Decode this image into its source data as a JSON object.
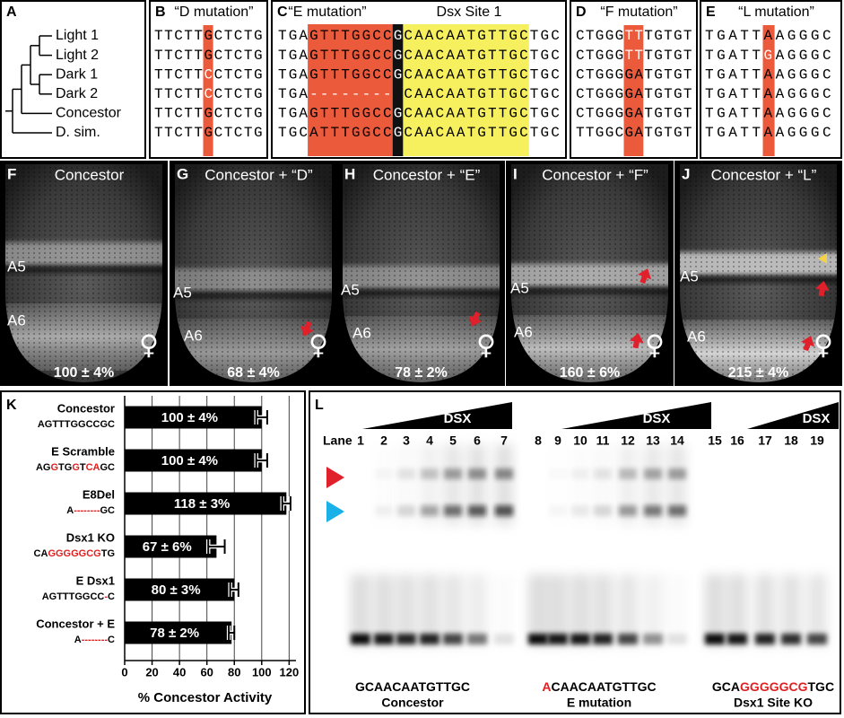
{
  "panel_a": {
    "letter": "A",
    "taxa": [
      "Light 1",
      "Light 2",
      "Dark 1",
      "Dark 2",
      "Concestor",
      "D. sim."
    ]
  },
  "panel_b": {
    "letter": "B",
    "title": "“D mutation”",
    "rows": [
      {
        "pre": "TTCTT",
        "mid": "G",
        "post": "CTCTG",
        "mutant": false
      },
      {
        "pre": "TTCTT",
        "mid": "G",
        "post": "CTCTG",
        "mutant": false
      },
      {
        "pre": "TTCTT",
        "mid": "C",
        "post": "CTCTG",
        "mutant": true
      },
      {
        "pre": "TTCTT",
        "mid": "C",
        "post": "CTCTG",
        "mutant": true
      },
      {
        "pre": "TTCTT",
        "mid": "G",
        "post": "CTCTG",
        "mutant": false
      },
      {
        "pre": "TTCTT",
        "mid": "G",
        "post": "CTCTG",
        "mutant": false
      }
    ]
  },
  "panel_c": {
    "letter": "C",
    "title": "“E mutation”",
    "site": "Dsx Site 1",
    "rows": [
      {
        "pre": "TGA",
        "orange": "GTTTGGCC",
        "black": "G",
        "yellow": "CAACAATGTTGC",
        "post": "TGC"
      },
      {
        "pre": "TGA",
        "orange": "GTTTGGCC",
        "black": "G",
        "yellow": "CAACAATGTTGC",
        "post": "TGC"
      },
      {
        "pre": "TGA",
        "orange": "GTTTGGCC",
        "black": "G",
        "yellow": "CAACAATGTTGC",
        "post": "TGC"
      },
      {
        "pre": "TGA",
        "orange": "--------",
        "yellow": "CAACAATGTTGC",
        "post": "TGC"
      },
      {
        "pre": "TGA",
        "orange": "GTTTGGCC",
        "black": "G",
        "yellow": "CAACAATGTTGC",
        "post": "TGC"
      },
      {
        "pre": "TGC",
        "orange": "ATTTGGCC",
        "black": "G",
        "yellow": "CAACAATGTTGC",
        "post": "TGC"
      }
    ]
  },
  "panel_d": {
    "letter": "D",
    "title": "“F mutation”",
    "rows": [
      {
        "pre": "CTGGG",
        "mid": "TT",
        "post": "TGTGT",
        "mutant": true
      },
      {
        "pre": "CTGGG",
        "mid": "TT",
        "post": "TGTGT",
        "mutant": true
      },
      {
        "pre": "CTGGG",
        "mid": "GA",
        "post": "TGTGT",
        "mutant": false
      },
      {
        "pre": "CTGGG",
        "mid": "GA",
        "post": "TGTGT",
        "mutant": false
      },
      {
        "pre": "CTGGG",
        "mid": "GA",
        "post": "TGTGT",
        "mutant": false
      },
      {
        "pre": "TTGGC",
        "mid": "GA",
        "post": "TGTGT",
        "mutant": false
      }
    ]
  },
  "panel_e": {
    "letter": "E",
    "title": "“L mutation”",
    "rows": [
      {
        "pre": "TGATT",
        "mid": "A",
        "post": "AGGGC",
        "mutant": false
      },
      {
        "pre": "TGATT",
        "mid": "G",
        "post": "AGGGC",
        "mutant": true
      },
      {
        "pre": "TGATT",
        "mid": "A",
        "post": "AGGGC",
        "mutant": false
      },
      {
        "pre": "TGATT",
        "mid": "A",
        "post": "AGGGC",
        "mutant": false
      },
      {
        "pre": "TGATT",
        "mid": "A",
        "post": "AGGGC",
        "mutant": false
      },
      {
        "pre": "TGATT",
        "mid": "A",
        "post": "AGGGC",
        "mutant": false
      }
    ]
  },
  "images": [
    {
      "letter": "F",
      "title": "Concestor",
      "a5": "A5",
      "a6": "A6",
      "symbol": "♀",
      "activity": "100 ± 4%"
    },
    {
      "letter": "G",
      "title": "Concestor + “D”",
      "a5": "A5",
      "a6": "A6",
      "symbol": "♀",
      "activity": "68 ± 4%"
    },
    {
      "letter": "H",
      "title": "Concestor + “E”",
      "a5": "A5",
      "a6": "A6",
      "symbol": "♀",
      "activity": "78 ± 2%"
    },
    {
      "letter": "I",
      "title": "Concestor + “F”",
      "a5": "A5",
      "a6": "A6",
      "symbol": "♀",
      "activity": "160 ± 6%"
    },
    {
      "letter": "J",
      "title": "Concestor + “L”",
      "a5": "A5",
      "a6": "A6",
      "symbol": "♀",
      "activity": "215 ± 4%"
    }
  ],
  "chart_data": {
    "type": "bar",
    "orientation": "horizontal",
    "panel_label": "K",
    "categories": [
      "Concestor",
      "E Scramble",
      "E8Del",
      "Dsx1 KO",
      "E Dsx1",
      "Concestor + E"
    ],
    "sequences": [
      [
        {
          "text": "AGTTTGGCCGC",
          "red": false
        }
      ],
      [
        {
          "text": "AG",
          "red": false
        },
        {
          "text": "G",
          "red": true
        },
        {
          "text": "TG",
          "red": false
        },
        {
          "text": "G",
          "red": true
        },
        {
          "text": "T",
          "red": false
        },
        {
          "text": "CA",
          "red": true
        },
        {
          "text": "GC",
          "red": false
        }
      ],
      [
        {
          "text": "A",
          "red": false
        },
        {
          "text": "--------",
          "red": true
        },
        {
          "text": "GC",
          "red": false
        }
      ],
      [
        {
          "text": "CA",
          "red": false
        },
        {
          "text": "GGGGGCG",
          "red": true
        },
        {
          "text": "TG",
          "red": false
        }
      ],
      [
        {
          "text": "AGTTTGGCC",
          "red": false
        },
        {
          "text": "-",
          "red": true
        },
        {
          "text": "C",
          "red": false
        }
      ],
      [
        {
          "text": "A",
          "red": false
        },
        {
          "text": "--------",
          "red": true
        },
        {
          "text": "C",
          "red": false
        }
      ]
    ],
    "values": [
      100,
      100,
      118,
      67,
      80,
      78
    ],
    "errors": [
      4,
      4,
      3,
      6,
      3,
      2
    ],
    "value_labels": [
      "100 ± 4%",
      "100 ± 4%",
      "118 ± 3%",
      "67 ± 6%",
      "80 ± 3%",
      "78 ± 2%"
    ],
    "color": "#000000",
    "xlim": [
      0,
      125
    ],
    "xticks": [
      0,
      20,
      40,
      60,
      80,
      100,
      120
    ],
    "xlabel": "% Concestor Activity",
    "grid": true
  },
  "gel": {
    "letter": "L",
    "lane_title": "Lane",
    "lanes": [
      1,
      2,
      3,
      4,
      5,
      6,
      7,
      8,
      9,
      10,
      11,
      12,
      13,
      14,
      15,
      16,
      17,
      18,
      19
    ],
    "wedge_labels": [
      "DSX",
      "DSX",
      "DSX"
    ],
    "groups": [
      {
        "sequence": [
          {
            "text": "GCAACAATGTTGC",
            "red": false
          }
        ],
        "name": "Concestor"
      },
      {
        "sequence": [
          {
            "text": "A",
            "red": true
          },
          {
            "text": "CAACAATGTTGC",
            "red": false
          }
        ],
        "name": "E mutation"
      },
      {
        "sequence": [
          {
            "text": "GCA",
            "red": false
          },
          {
            "text": "GGGGGCG",
            "red": true
          },
          {
            "text": "TGC",
            "red": false
          }
        ],
        "name": "Dsx1 Site KO"
      }
    ]
  }
}
